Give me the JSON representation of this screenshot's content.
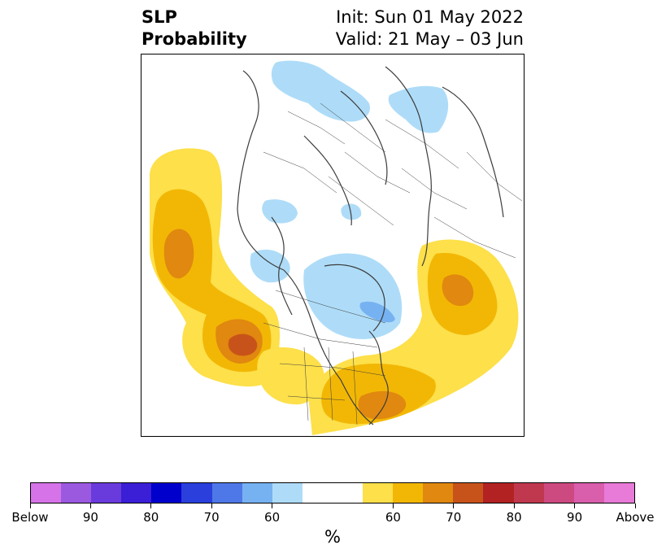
{
  "title": {
    "left_line1": "SLP",
    "left_line2": "Probability",
    "right_line1": "Init: Sun 01 May 2022",
    "right_line2": "Valid: 21 May – 03 Jun"
  },
  "colorbar": {
    "units": "%",
    "colors": [
      "#d673e8",
      "#9b59e0",
      "#6a3bdc",
      "#3a1fd6",
      "#0000cc",
      "#2a3fdc",
      "#4e78e8",
      "#76b2f2",
      "#aedcf8",
      "#ffffff",
      "#ffffff",
      "#fde04a",
      "#f2b705",
      "#e0880f",
      "#c8531a",
      "#b22222",
      "#c0384e",
      "#cc4a80",
      "#d95eac",
      "#e87ad8"
    ],
    "tick_labels": [
      "Below",
      "90",
      "80",
      "70",
      "60",
      "60",
      "70",
      "80",
      "90",
      "Above"
    ]
  },
  "map": {
    "projection": "north-polar-stereographic",
    "colors": {
      "above_60": "#fde04a",
      "above_65": "#f2b705",
      "above_70": "#e0880f",
      "above_75": "#c8531a",
      "below_60": "#aedcf8",
      "below_65": "#76b2f2",
      "coast": "#3c3c3c"
    }
  }
}
